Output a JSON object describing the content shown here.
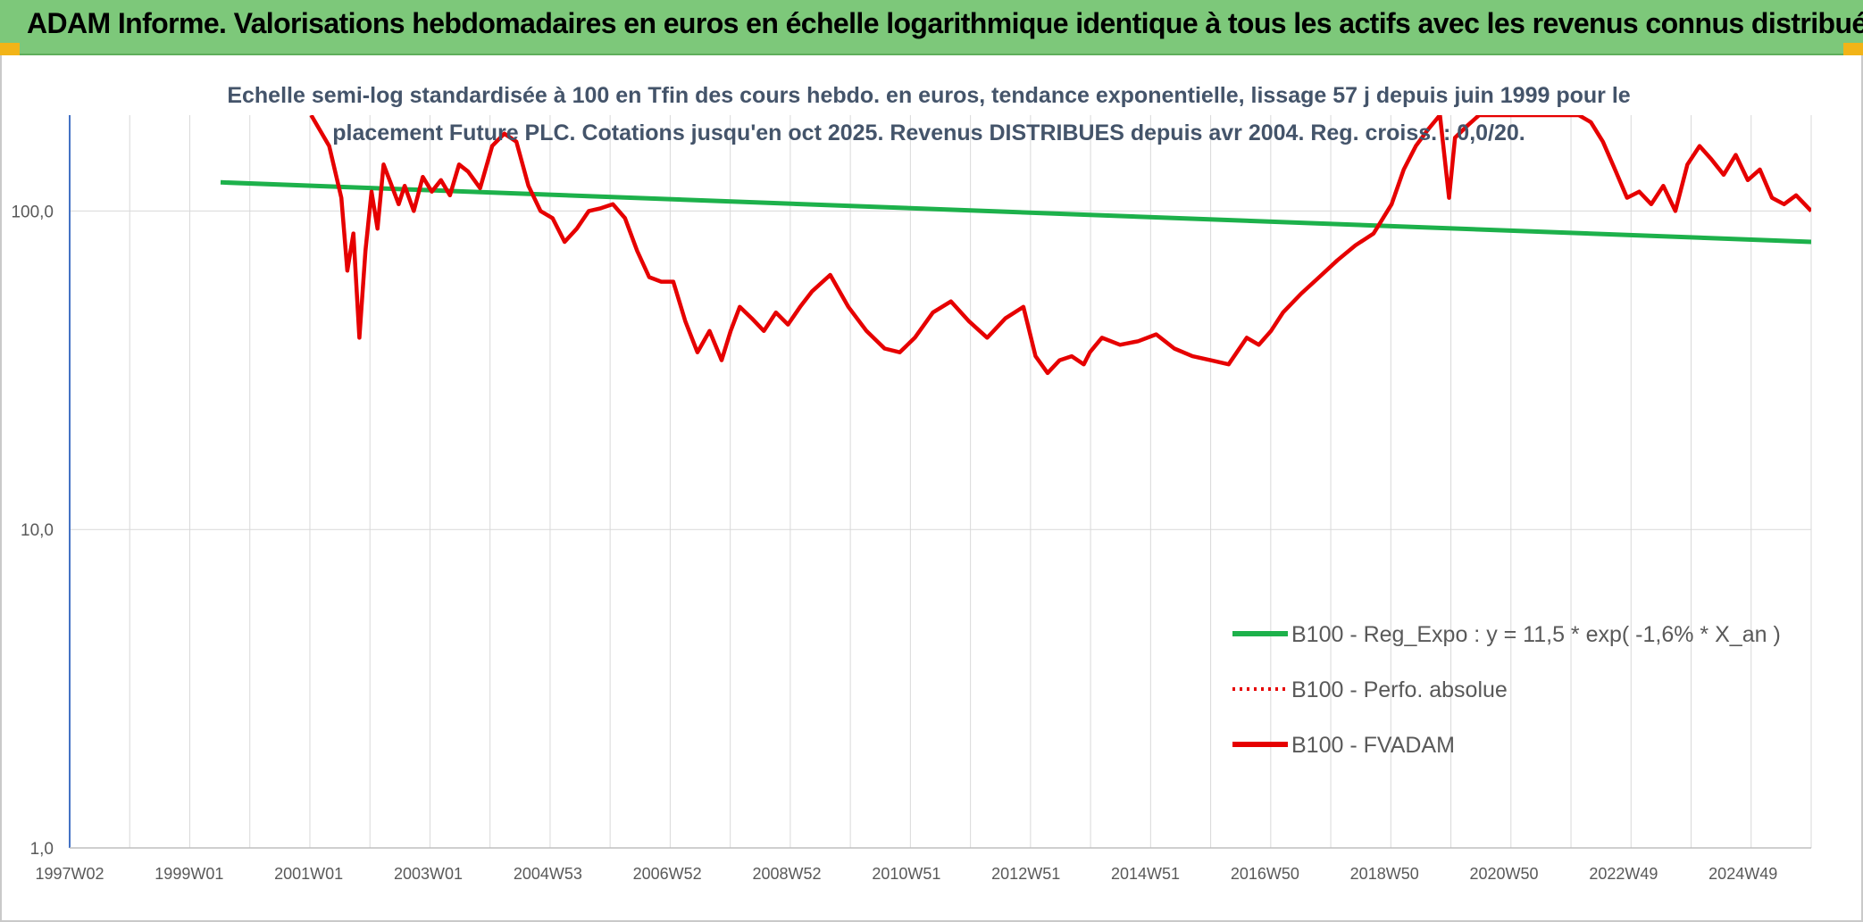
{
  "header": {
    "title": "ADAM Informe. Valorisations hebdomadaires en euros en échelle logarithmique identique à tous les actifs avec les revenus connus distribués"
  },
  "colors": {
    "header_bg": "#7dc87a",
    "regression": "#1db14b",
    "fvadam": "#e60000",
    "perf_absolue": "#e60000",
    "gridline": "#d9d9d9",
    "axis": "#4472c4"
  },
  "chart_data": {
    "type": "line",
    "title_lines": [
      "Echelle semi-log standardisée à 100 en Tfin des cours hebdo. en euros, tendance exponentielle, lissage 57 j depuis juin 1999 pour le",
      "placement Future PLC. Cotations jusqu'en oct 2025. Revenus DISTRIBUES depuis avr 2004. Reg. croiss. : 0,0/20."
    ],
    "y_scale": "log",
    "ylim": [
      1,
      200
    ],
    "y_ticks": [
      "1,0",
      "10,0",
      "100,0"
    ],
    "y_tick_values": [
      1,
      10,
      100
    ],
    "x_range": [
      1997.0,
      2025.85
    ],
    "x_ticks": [
      "1997W02",
      "1999W01",
      "2001W01",
      "2003W01",
      "2004W53",
      "2006W52",
      "2008W52",
      "2010W51",
      "2012W51",
      "2014W51",
      "2016W50",
      "2018W50",
      "2020W50",
      "2022W49",
      "2024W49"
    ],
    "grid": true,
    "legend_position": "right",
    "series": [
      {
        "name": "B100 - Reg_Expo : y = 11,5 * exp( -1,6% *  X_an )",
        "style": "solid",
        "x": [
          1999.5,
          2025.85
        ],
        "y": [
          123,
          80
        ]
      },
      {
        "name": "B100 - Perfo. absolue",
        "style": "dotted",
        "x": [],
        "y": []
      },
      {
        "name": "B100 - FVADAM",
        "style": "solid",
        "x": [
          2001.0,
          2001.3,
          2001.5,
          2001.6,
          2001.7,
          2001.8,
          2001.9,
          2002.0,
          2002.1,
          2002.2,
          2002.3,
          2002.45,
          2002.55,
          2002.7,
          2002.85,
          2003.0,
          2003.15,
          2003.3,
          2003.45,
          2003.6,
          2003.8,
          2004.0,
          2004.2,
          2004.4,
          2004.6,
          2004.8,
          2005.0,
          2005.2,
          2005.4,
          2005.6,
          2005.8,
          2006.0,
          2006.2,
          2006.4,
          2006.6,
          2006.8,
          2007.0,
          2007.2,
          2007.4,
          2007.6,
          2007.8,
          2007.95,
          2008.1,
          2008.3,
          2008.5,
          2008.7,
          2008.9,
          2009.1,
          2009.3,
          2009.6,
          2009.9,
          2010.2,
          2010.5,
          2010.75,
          2011.0,
          2011.3,
          2011.6,
          2011.9,
          2012.2,
          2012.5,
          2012.8,
          2013.0,
          2013.2,
          2013.4,
          2013.6,
          2013.8,
          2013.9,
          2014.1,
          2014.4,
          2014.7,
          2015.0,
          2015.3,
          2015.6,
          2015.9,
          2016.2,
          2016.5,
          2016.7,
          2016.9,
          2017.1,
          2017.4,
          2017.7,
          2018.0,
          2018.3,
          2018.6,
          2018.9,
          2019.1,
          2019.3,
          2019.5,
          2019.7,
          2019.85,
          2019.95,
          2020.15,
          2020.35,
          2020.6,
          2022.0,
          2022.2,
          2022.4,
          2022.6,
          2022.8,
          2023.0,
          2023.2,
          2023.4,
          2023.6,
          2023.8,
          2024.0,
          2024.2,
          2024.4,
          2024.6,
          2024.8,
          2025.0,
          2025.2,
          2025.4,
          2025.6,
          2025.85
        ],
        "y": [
          200,
          160,
          110,
          65,
          85,
          40,
          75,
          115,
          88,
          140,
          125,
          105,
          120,
          100,
          128,
          115,
          125,
          112,
          140,
          133,
          118,
          160,
          175,
          165,
          120,
          100,
          95,
          80,
          88,
          100,
          102,
          105,
          95,
          75,
          62,
          60,
          60,
          45,
          36,
          42,
          34,
          42,
          50,
          46,
          42,
          48,
          44,
          50,
          56,
          63,
          50,
          42,
          37,
          36,
          40,
          48,
          52,
          45,
          40,
          46,
          50,
          35,
          31,
          34,
          35,
          33,
          36,
          40,
          38,
          39,
          41,
          37,
          35,
          34,
          33,
          40,
          38,
          42,
          48,
          55,
          62,
          70,
          78,
          85,
          105,
          135,
          160,
          180,
          200,
          110,
          170,
          185,
          200,
          200,
          200,
          190,
          165,
          135,
          110,
          115,
          105,
          120,
          100,
          140,
          160,
          145,
          130,
          150,
          125,
          135,
          110,
          105,
          112,
          100
        ]
      }
    ]
  }
}
